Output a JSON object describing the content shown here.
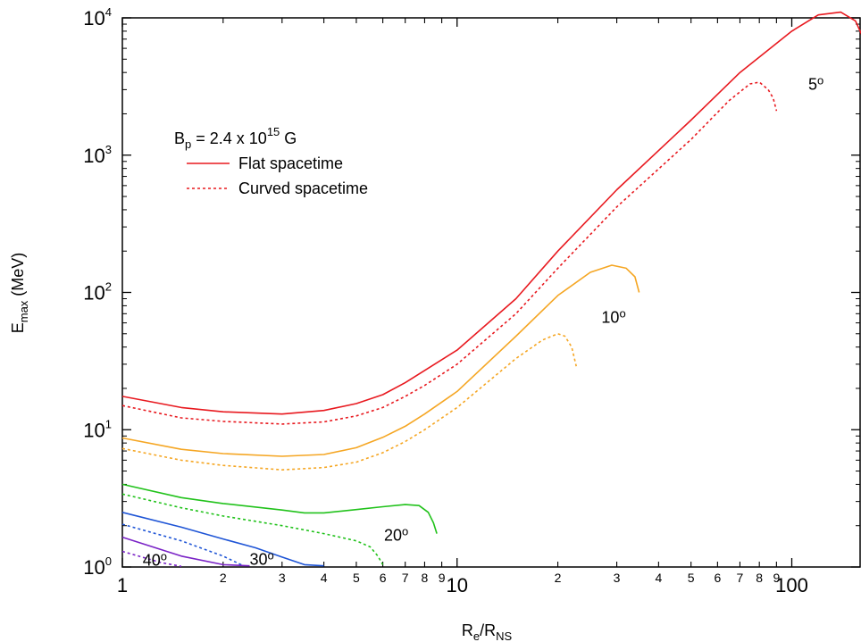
{
  "chart_data": {
    "type": "line",
    "xscale": "log",
    "yscale": "log",
    "xlim": [
      1,
      160
    ],
    "ylim": [
      1,
      10000
    ],
    "grid": false,
    "legend_placement": "top-left",
    "xlabel": {
      "main": "R",
      "sub1": "e",
      "mid": "/R",
      "sub2": "NS"
    },
    "ylabel": {
      "main": "E",
      "sub": "max",
      "rest": " (MeV)"
    },
    "x_major_ticks": [
      {
        "value": 1,
        "label": "1"
      },
      {
        "value": 10,
        "label": "10"
      },
      {
        "value": 100,
        "label": "100"
      }
    ],
    "x_minor_ticks": [
      {
        "value": 2,
        "label": "2"
      },
      {
        "value": 3,
        "label": "3"
      },
      {
        "value": 4,
        "label": "4"
      },
      {
        "value": 5,
        "label": "5"
      },
      {
        "value": 6,
        "label": "6"
      },
      {
        "value": 7,
        "label": "7"
      },
      {
        "value": 8,
        "label": "8"
      },
      {
        "value": 9,
        "label": "9"
      },
      {
        "value": 20,
        "label": "2"
      },
      {
        "value": 30,
        "label": "3"
      },
      {
        "value": 40,
        "label": "4"
      },
      {
        "value": 50,
        "label": "5"
      },
      {
        "value": 60,
        "label": "6"
      },
      {
        "value": 70,
        "label": "7"
      },
      {
        "value": 80,
        "label": "8"
      },
      {
        "value": 90,
        "label": "9"
      }
    ],
    "y_major_ticks": [
      {
        "value": 1,
        "base": "10",
        "exp": "0"
      },
      {
        "value": 10,
        "base": "10",
        "exp": "1"
      },
      {
        "value": 100,
        "base": "10",
        "exp": "2"
      },
      {
        "value": 1000,
        "base": "10",
        "exp": "3"
      },
      {
        "value": 10000,
        "base": "10",
        "exp": "4"
      }
    ],
    "legend": {
      "field_text": {
        "main": "B",
        "sub": "p",
        "mid": " = 2.4 x 10",
        "sup": "15",
        "end": " G"
      },
      "entries": [
        {
          "label": "Flat spacetime",
          "style": "solid"
        },
        {
          "label": "Curved spacetime",
          "style": "dashed"
        }
      ]
    },
    "series": [
      {
        "angle": "5",
        "style": "solid",
        "color": "#e8191f",
        "points": [
          [
            1,
            17.5
          ],
          [
            1.5,
            14.5
          ],
          [
            2,
            13.5
          ],
          [
            3,
            13
          ],
          [
            4,
            13.8
          ],
          [
            5,
            15.5
          ],
          [
            6,
            18
          ],
          [
            7,
            22
          ],
          [
            8,
            27
          ],
          [
            10,
            38
          ],
          [
            15,
            90
          ],
          [
            20,
            200
          ],
          [
            30,
            560
          ],
          [
            50,
            1800
          ],
          [
            70,
            4000
          ],
          [
            100,
            8000
          ],
          [
            120,
            10500
          ],
          [
            140,
            11000
          ],
          [
            155,
            9500
          ],
          [
            165,
            6800
          ]
        ]
      },
      {
        "angle": "5",
        "style": "dashed",
        "color": "#e8191f",
        "points": [
          [
            1,
            15
          ],
          [
            1.5,
            12.2
          ],
          [
            2,
            11.5
          ],
          [
            3,
            11
          ],
          [
            4,
            11.4
          ],
          [
            5,
            12.6
          ],
          [
            6,
            14.5
          ],
          [
            7,
            17.5
          ],
          [
            8,
            21
          ],
          [
            10,
            30
          ],
          [
            15,
            70
          ],
          [
            20,
            150
          ],
          [
            30,
            420
          ],
          [
            50,
            1300
          ],
          [
            65,
            2500
          ],
          [
            75,
            3300
          ],
          [
            80,
            3400
          ],
          [
            85,
            3000
          ],
          [
            88,
            2600
          ],
          [
            90,
            2100
          ]
        ]
      },
      {
        "angle": "10",
        "style": "solid",
        "color": "#f5a623",
        "points": [
          [
            1,
            8.7
          ],
          [
            1.5,
            7.2
          ],
          [
            2,
            6.7
          ],
          [
            3,
            6.4
          ],
          [
            4,
            6.6
          ],
          [
            5,
            7.4
          ],
          [
            6,
            8.8
          ],
          [
            7,
            10.6
          ],
          [
            8,
            13
          ],
          [
            10,
            19
          ],
          [
            15,
            48
          ],
          [
            20,
            95
          ],
          [
            25,
            140
          ],
          [
            29,
            158
          ],
          [
            32,
            150
          ],
          [
            34,
            130
          ],
          [
            35,
            100
          ]
        ]
      },
      {
        "angle": "10",
        "style": "dashed",
        "color": "#f5a623",
        "points": [
          [
            1,
            7.3
          ],
          [
            1.5,
            6
          ],
          [
            2,
            5.5
          ],
          [
            3,
            5.1
          ],
          [
            4,
            5.3
          ],
          [
            5,
            5.8
          ],
          [
            6,
            6.8
          ],
          [
            7,
            8.2
          ],
          [
            8,
            10
          ],
          [
            10,
            14.5
          ],
          [
            15,
            33
          ],
          [
            18,
            45
          ],
          [
            20,
            50
          ],
          [
            21,
            48
          ],
          [
            22,
            40
          ],
          [
            22.7,
            29
          ]
        ]
      },
      {
        "angle": "20",
        "style": "solid",
        "color": "#21c21b",
        "points": [
          [
            1,
            4
          ],
          [
            1.5,
            3.2
          ],
          [
            2,
            2.9
          ],
          [
            3,
            2.6
          ],
          [
            3.5,
            2.48
          ],
          [
            4,
            2.48
          ],
          [
            5,
            2.62
          ],
          [
            6,
            2.75
          ],
          [
            7,
            2.85
          ],
          [
            7.7,
            2.8
          ],
          [
            8.2,
            2.5
          ],
          [
            8.5,
            2.1
          ],
          [
            8.7,
            1.75
          ]
        ]
      },
      {
        "angle": "20",
        "style": "dashed",
        "color": "#21c21b",
        "points": [
          [
            1,
            3.4
          ],
          [
            1.5,
            2.7
          ],
          [
            2,
            2.35
          ],
          [
            3,
            2
          ],
          [
            4,
            1.75
          ],
          [
            5,
            1.55
          ],
          [
            5.5,
            1.4
          ],
          [
            5.8,
            1.2
          ],
          [
            6,
            1.04
          ]
        ]
      },
      {
        "angle": "30",
        "style": "solid",
        "color": "#1f55d6",
        "points": [
          [
            1,
            2.5
          ],
          [
            1.5,
            1.95
          ],
          [
            2,
            1.6
          ],
          [
            2.5,
            1.38
          ],
          [
            3,
            1.18
          ],
          [
            3.5,
            1.04
          ],
          [
            4,
            1.02
          ]
        ]
      },
      {
        "angle": "30",
        "style": "dashed",
        "color": "#1f55d6",
        "points": [
          [
            1,
            2.05
          ],
          [
            1.5,
            1.55
          ],
          [
            2,
            1.2
          ],
          [
            2.3,
            1.02
          ]
        ]
      },
      {
        "angle": "40",
        "style": "solid",
        "color": "#7a23c6",
        "points": [
          [
            1,
            1.65
          ],
          [
            1.5,
            1.2
          ],
          [
            2,
            1.04
          ],
          [
            2.4,
            1.02
          ]
        ]
      },
      {
        "angle": "40",
        "style": "dashed",
        "color": "#7a23c6",
        "points": [
          [
            1,
            1.3
          ],
          [
            1.3,
            1.08
          ],
          [
            1.5,
            1.01
          ]
        ]
      }
    ],
    "annotations": [
      {
        "text": "5",
        "deg": "o",
        "x": 112,
        "y": 3000
      },
      {
        "text": "10",
        "deg": "o",
        "x": 27,
        "y": 60
      },
      {
        "text": "20",
        "deg": "o",
        "x": 6.05,
        "y": 1.55
      },
      {
        "text": "30",
        "deg": "o",
        "x": 2.4,
        "y": 1.04
      },
      {
        "text": "40",
        "deg": "o",
        "x": 1.15,
        "y": 1.02
      }
    ]
  }
}
